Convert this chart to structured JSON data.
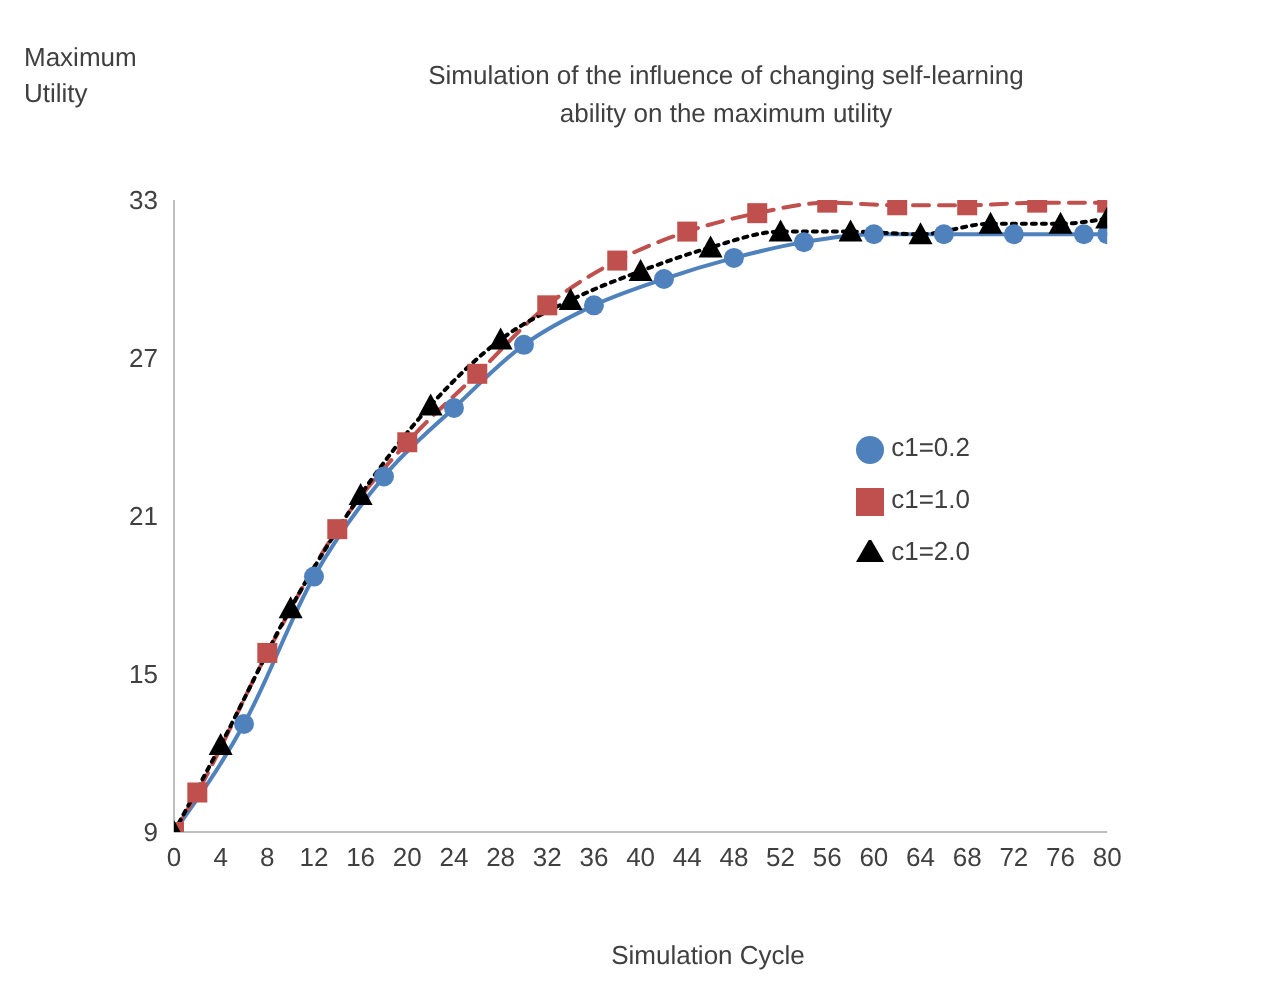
{
  "chart_data": {
    "type": "line",
    "title": "Simulation of the influence of changing self-learning\nability on the maximum utility",
    "xlabel": "Simulation Cycle",
    "ylabel": "Maximum\nUtility",
    "series": [
      {
        "name": "c1=0.2",
        "color": "#4f81bd",
        "marker": "circle",
        "line_style": "solid",
        "x": [
          0,
          6,
          12,
          18,
          24,
          30,
          36,
          42,
          48,
          54,
          60,
          66,
          72,
          78,
          80
        ],
        "values": [
          9,
          13.1,
          18.7,
          22.5,
          25.1,
          27.5,
          29.0,
          30.0,
          30.8,
          31.4,
          31.7,
          31.7,
          31.7,
          31.7,
          31.7
        ]
      },
      {
        "name": "c1=1.0",
        "color": "#c0504d",
        "marker": "square",
        "line_style": "dashed",
        "x": [
          0,
          2,
          8,
          14,
          20,
          26,
          32,
          38,
          44,
          50,
          56,
          62,
          68,
          74,
          80
        ],
        "values": [
          9,
          10.5,
          15.8,
          20.5,
          23.8,
          26.4,
          29.0,
          30.7,
          31.8,
          32.5,
          32.9,
          32.8,
          32.8,
          32.9,
          32.9
        ]
      },
      {
        "name": "c1=2.0",
        "color": "#000000",
        "marker": "triangle",
        "line_style": "dotted",
        "x": [
          0,
          4,
          10,
          16,
          22,
          28,
          34,
          40,
          46,
          52,
          58,
          64,
          70,
          76,
          80
        ],
        "values": [
          9,
          12.3,
          17.5,
          21.8,
          25.2,
          27.7,
          29.2,
          30.3,
          31.2,
          31.8,
          31.8,
          31.7,
          32.1,
          32.1,
          32.3
        ]
      }
    ],
    "xlim": [
      0,
      80
    ],
    "xticks": [
      0,
      4,
      8,
      12,
      16,
      20,
      24,
      28,
      32,
      36,
      40,
      44,
      48,
      52,
      56,
      60,
      64,
      68,
      72,
      76,
      80
    ],
    "ylim": [
      9,
      33
    ],
    "yticks": [
      9,
      15,
      21,
      27,
      33
    ],
    "grid": false,
    "legend": "right"
  }
}
